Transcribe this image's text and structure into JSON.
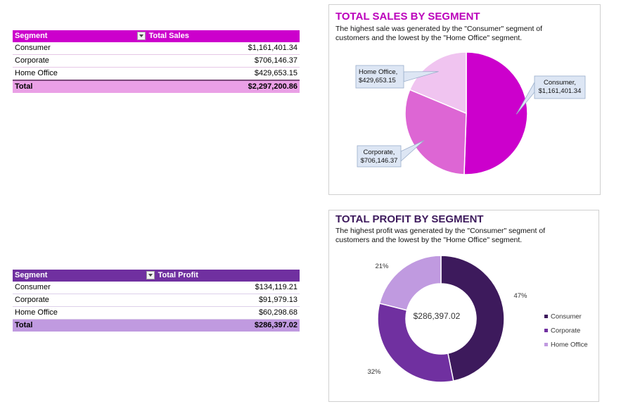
{
  "sales_table": {
    "header": {
      "segment": "Segment",
      "value": "Total Sales"
    },
    "rows": [
      {
        "segment": "Consumer",
        "value": "$1,161,401.34"
      },
      {
        "segment": "Corporate",
        "value": "$706,146.37"
      },
      {
        "segment": "Home Office",
        "value": "$429,653.15"
      }
    ],
    "total": {
      "label": "Total",
      "value": "$2,297,200.86"
    }
  },
  "profit_table": {
    "header": {
      "segment": "Segment",
      "value": "Total Profit"
    },
    "rows": [
      {
        "segment": "Consumer",
        "value": "$134,119.21"
      },
      {
        "segment": "Corporate",
        "value": "$91,979.13"
      },
      {
        "segment": "Home Office",
        "value": "$60,298.68"
      }
    ],
    "total": {
      "label": "Total",
      "value": "$286,397.02"
    }
  },
  "chart_data": [
    {
      "type": "pie",
      "title": "TOTAL SALES BY SEGMENT",
      "subtitle": "The highest sale was generated by the \"Consumer\" segment of customers and the lowest by the \"Home Office\" segment.",
      "categories": [
        "Consumer",
        "Corporate",
        "Home Office"
      ],
      "values": [
        1161401.34,
        706146.37,
        429653.15
      ],
      "colors": [
        "#cc00cc",
        "#dd66d4",
        "#f0c4f0"
      ],
      "data_labels": [
        [
          "Consumer,",
          "$1,161,401.34"
        ],
        [
          "Corporate,",
          "$706,146.37"
        ],
        [
          "Home Office,",
          "$429,653.15"
        ]
      ],
      "legend": "none"
    },
    {
      "type": "pie",
      "title": "TOTAL PROFIT BY SEGMENT",
      "subtitle": "The highest profit was generated by the \"Consumer\" segment of customers and the lowest by the \"Home Office\" segment.",
      "categories": [
        "Consumer",
        "Corporate",
        "Home Office"
      ],
      "values": [
        134119.21,
        91979.13,
        60298.68
      ],
      "colors": [
        "#3d1a5c",
        "#7030a0",
        "#c09ae0"
      ],
      "data_labels": [
        "47%",
        "32%",
        "21%"
      ],
      "center_label": "$286,397.02",
      "legend": "right"
    }
  ]
}
